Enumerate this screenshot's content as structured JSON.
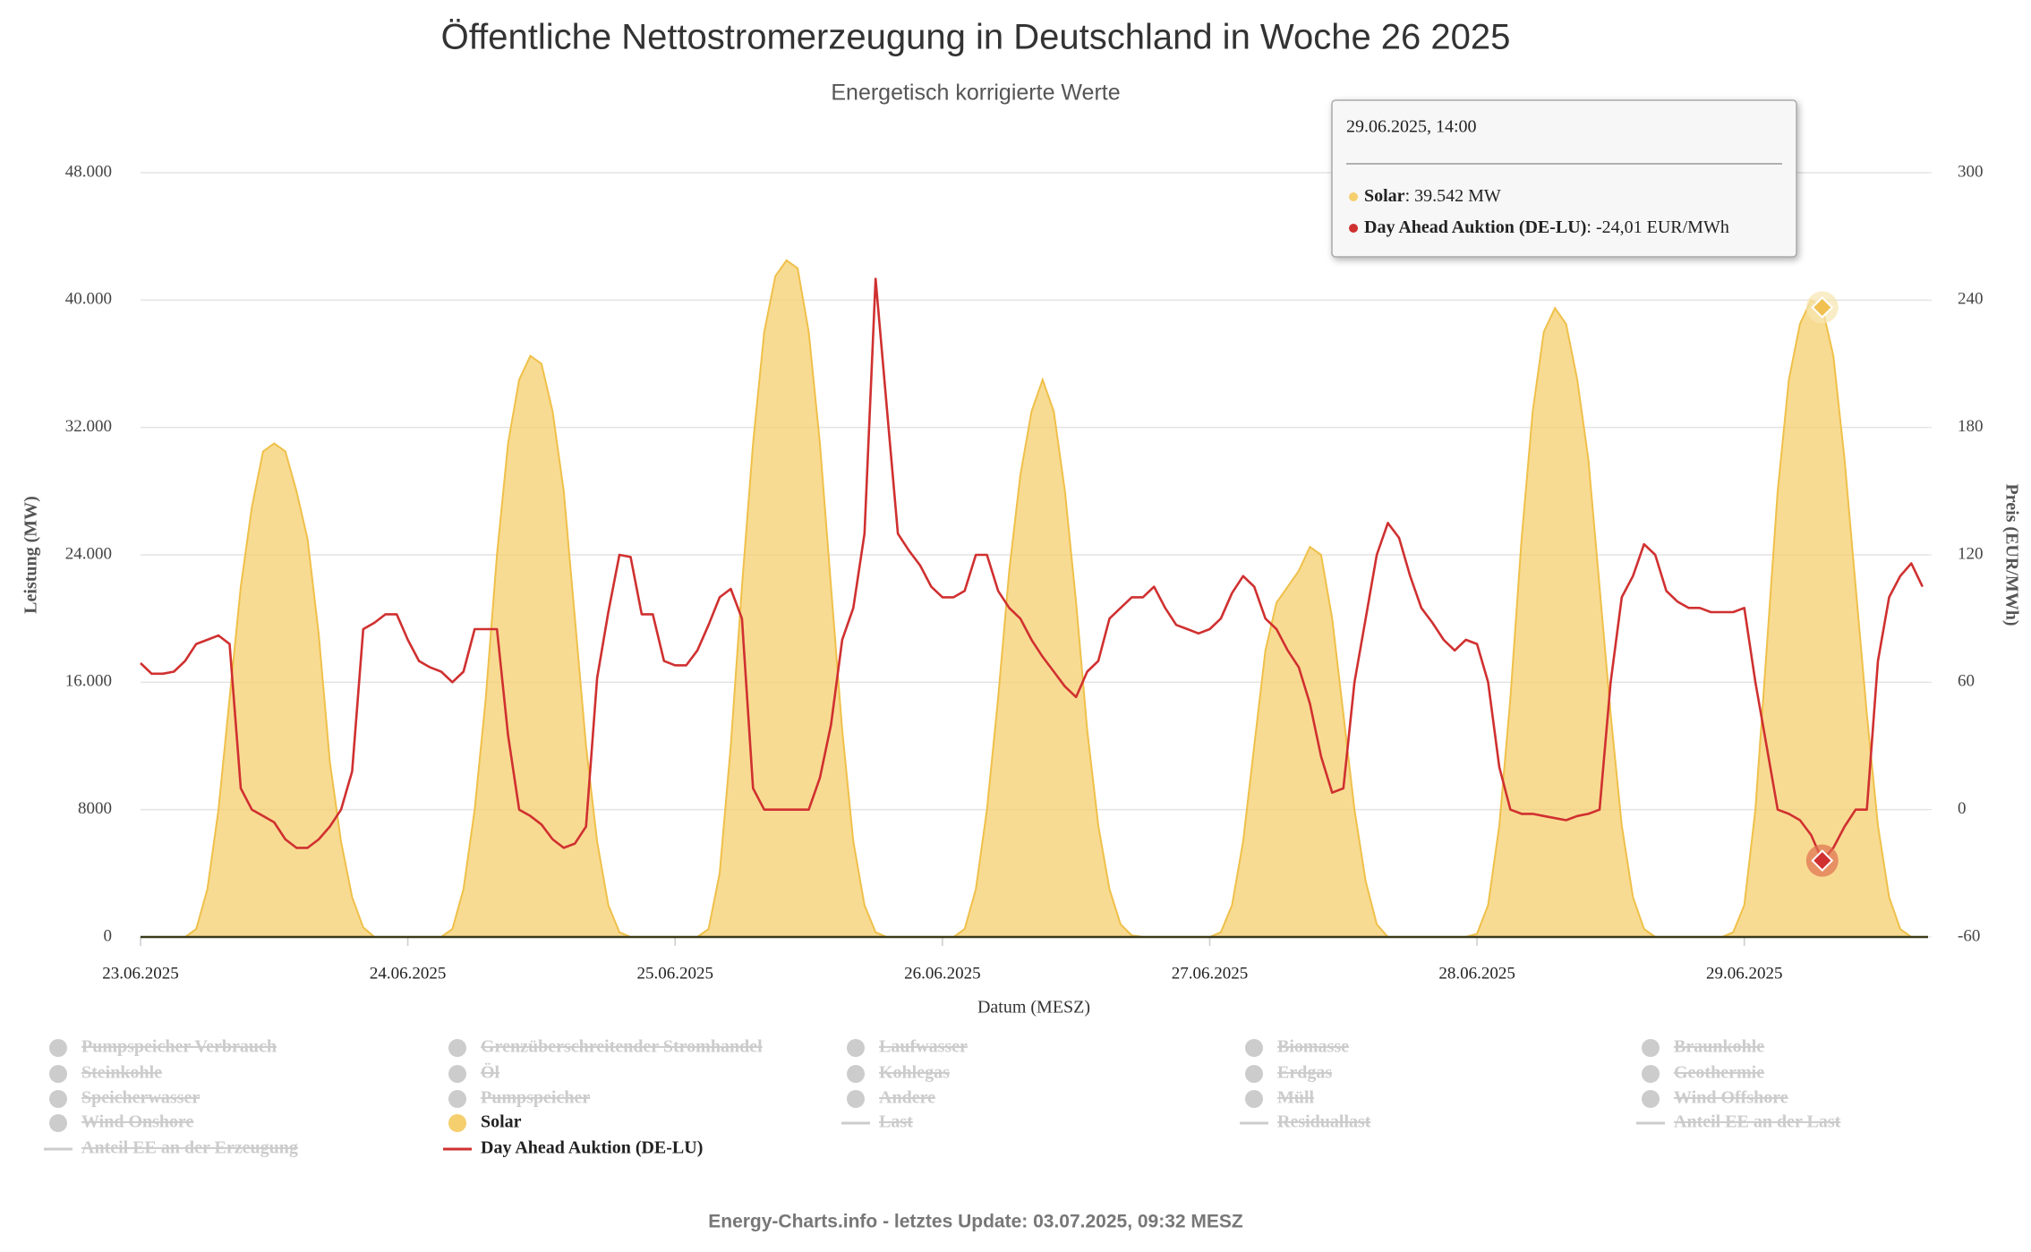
{
  "chart_data": {
    "type": "area-line",
    "title": "Öffentliche Nettostromerzeugung in Deutschland in Woche 26 2025",
    "subtitle": "Energetisch korrigierte Werte",
    "xlabel": "Datum (MESZ)",
    "ylabel": "Leistung (MW)",
    "y2label": "Preis (EUR/MWh)",
    "footer": "Energy-Charts.info - letztes Update: 03.07.2025, 09:32 MESZ",
    "x": [
      0,
      1,
      2,
      3,
      4,
      5,
      6,
      7,
      8,
      9,
      10,
      11,
      12,
      13,
      14,
      15,
      16,
      17,
      18,
      19,
      20,
      21,
      22,
      23,
      24,
      25,
      26,
      27,
      28,
      29,
      30,
      31,
      32,
      33,
      34,
      35,
      36,
      37,
      38,
      39,
      40,
      41,
      42,
      43,
      44,
      45,
      46,
      47,
      48,
      49,
      50,
      51,
      52,
      53,
      54,
      55,
      56,
      57,
      58,
      59,
      60,
      61,
      62,
      63,
      64,
      65,
      66,
      67,
      68,
      69,
      70,
      71,
      72,
      73,
      74,
      75,
      76,
      77,
      78,
      79,
      80,
      81,
      82,
      83,
      84,
      85,
      86,
      87,
      88,
      89,
      90,
      91,
      92,
      93,
      94,
      95,
      96,
      97,
      98,
      99,
      100,
      101,
      102,
      103,
      104,
      105,
      106,
      107,
      108,
      109,
      110,
      111,
      112,
      113,
      114,
      115,
      116,
      117,
      118,
      119,
      120,
      121,
      122,
      123,
      124,
      125,
      126,
      127,
      128,
      129,
      130,
      131,
      132,
      133,
      134,
      135,
      136,
      137,
      138,
      139,
      140,
      141,
      142,
      143,
      144,
      145,
      146,
      147,
      148,
      149,
      150,
      151,
      152,
      153,
      154,
      155,
      156,
      157,
      158,
      159,
      160
    ],
    "xlim": [
      0,
      160.5
    ],
    "xticks": [
      {
        "value": 0,
        "label": "23.06.2025"
      },
      {
        "value": 24,
        "label": "24.06.2025"
      },
      {
        "value": 48,
        "label": "25.06.2025"
      },
      {
        "value": 72,
        "label": "26.06.2025"
      },
      {
        "value": 96,
        "label": "27.06.2025"
      },
      {
        "value": 120,
        "label": "28.06.2025"
      },
      {
        "value": 144,
        "label": "29.06.2025"
      }
    ],
    "ylim": [
      0,
      48000
    ],
    "yticks": [
      0,
      8000,
      {
        "value": 16000,
        "label": "16.000"
      },
      {
        "value": 24000,
        "label": "24.000"
      },
      {
        "value": 32000,
        "label": "32.000"
      },
      {
        "value": 40000,
        "label": "40.000"
      },
      {
        "value": 48000,
        "label": "48.000"
      }
    ],
    "y2lim": [
      -60,
      300
    ],
    "y2ticks": [
      -60,
      0,
      60,
      120,
      180,
      240,
      300
    ],
    "grid": true,
    "series": [
      {
        "name": "Solar",
        "color": "#f5cf6e",
        "kind": "area",
        "values": [
          0,
          0,
          0,
          0,
          0,
          500,
          3000,
          8000,
          15000,
          22000,
          27000,
          30500,
          31000,
          30500,
          28000,
          25000,
          19000,
          11000,
          6000,
          2500,
          600,
          0,
          0,
          0,
          0,
          0,
          0,
          0,
          500,
          3000,
          8000,
          15000,
          24000,
          31000,
          35000,
          36500,
          36000,
          33000,
          28000,
          20000,
          12000,
          6000,
          2000,
          300,
          0,
          0,
          0,
          0,
          0,
          0,
          0,
          500,
          4000,
          12000,
          22000,
          31000,
          38000,
          41500,
          42500,
          42000,
          38000,
          31000,
          22000,
          13000,
          6000,
          2000,
          300,
          0,
          0,
          0,
          0,
          0,
          0,
          0,
          500,
          3000,
          8000,
          15000,
          23000,
          29000,
          33000,
          35000,
          33000,
          28000,
          21000,
          13000,
          7000,
          3000,
          800,
          100,
          0,
          0,
          0,
          0,
          0,
          0,
          0,
          300,
          2000,
          6000,
          12000,
          18000,
          21000,
          22000,
          23000,
          24500,
          24000,
          20000,
          14000,
          8000,
          3500,
          800,
          0,
          0,
          0,
          0,
          0,
          0,
          0,
          0,
          200,
          2000,
          7000,
          15000,
          25000,
          33000,
          38000,
          39500,
          38500,
          35000,
          30000,
          22000,
          14000,
          7000,
          2500,
          500,
          0,
          0,
          0,
          0,
          0,
          0,
          0,
          300,
          2000,
          8000,
          18000,
          28000,
          35000,
          38500,
          40000,
          39542,
          36500,
          30000,
          22000,
          14000,
          7000,
          2500,
          500,
          0,
          0
        ]
      },
      {
        "name": "Day Ahead Auktion (DE-LU)",
        "color": "#d03030",
        "kind": "line",
        "axis": "y2",
        "values": [
          69,
          64,
          64,
          65,
          70,
          78,
          80,
          82,
          78,
          10,
          0,
          -3,
          -6,
          -14,
          -18,
          -18,
          -14,
          -8,
          0,
          18,
          85,
          88,
          92,
          92,
          80,
          70,
          67,
          65,
          60,
          65,
          85,
          85,
          85,
          35,
          0,
          -3,
          -7,
          -14,
          -18,
          -16,
          -8,
          62,
          93,
          120,
          119,
          92,
          92,
          70,
          68,
          68,
          75,
          87,
          100,
          104,
          90,
          10,
          0,
          0,
          0,
          0,
          0,
          15,
          40,
          80,
          95,
          130,
          250,
          190,
          130,
          122,
          115,
          105,
          100,
          100,
          103,
          120,
          120,
          103,
          95,
          90,
          80,
          72,
          65,
          58,
          53,
          65,
          70,
          90,
          95,
          100,
          100,
          105,
          95,
          87,
          85,
          83,
          85,
          90,
          102,
          110,
          105,
          90,
          85,
          75,
          67,
          50,
          25,
          8,
          10,
          60,
          90,
          120,
          135,
          128,
          110,
          95,
          88,
          80,
          75,
          80,
          78,
          60,
          20,
          0,
          -2,
          -2,
          -3,
          -4,
          -5,
          -3,
          -2,
          0,
          60,
          100,
          110,
          125,
          120,
          103,
          98,
          95,
          95,
          93,
          93,
          93,
          95,
          60,
          30,
          0,
          -2,
          -5,
          -12,
          -24.01,
          -18,
          -8,
          0,
          0,
          70,
          100,
          110,
          116,
          105
        ]
      }
    ],
    "hidden_series": [
      {
        "name": "Pumpspeicher Verbrauch",
        "symbol": "dot"
      },
      {
        "name": "Grenzüberschreitender Stromhandel",
        "symbol": "dot"
      },
      {
        "name": "Laufwasser",
        "symbol": "dot"
      },
      {
        "name": "Biomasse",
        "symbol": "dot"
      },
      {
        "name": "Braunkohle",
        "symbol": "dot"
      },
      {
        "name": "Steinkohle",
        "symbol": "dot"
      },
      {
        "name": "Öl",
        "symbol": "dot"
      },
      {
        "name": "Kohlegas",
        "symbol": "dot"
      },
      {
        "name": "Erdgas",
        "symbol": "dot"
      },
      {
        "name": "Geothermie",
        "symbol": "dot"
      },
      {
        "name": "Speicherwasser",
        "symbol": "dot"
      },
      {
        "name": "Pumpspeicher",
        "symbol": "dot"
      },
      {
        "name": "Andere",
        "symbol": "dot"
      },
      {
        "name": "Müll",
        "symbol": "dot"
      },
      {
        "name": "Wind Offshore",
        "symbol": "dot"
      },
      {
        "name": "Wind Onshore",
        "symbol": "dot"
      },
      {
        "name": "Last",
        "symbol": "line"
      },
      {
        "name": "Residuallast",
        "symbol": "line"
      },
      {
        "name": "Anteil EE an der Last",
        "symbol": "line"
      },
      {
        "name": "Anteil EE an der Erzeugung",
        "symbol": "line"
      }
    ],
    "tooltip": {
      "title": "29.06.2025, 14:00",
      "rows": [
        {
          "name": "Solar",
          "text": ": 39.542 MW"
        },
        {
          "name": "Day Ahead Auktion (DE-LU)",
          "text": ": -24,01 EUR/MWh"
        }
      ]
    }
  }
}
